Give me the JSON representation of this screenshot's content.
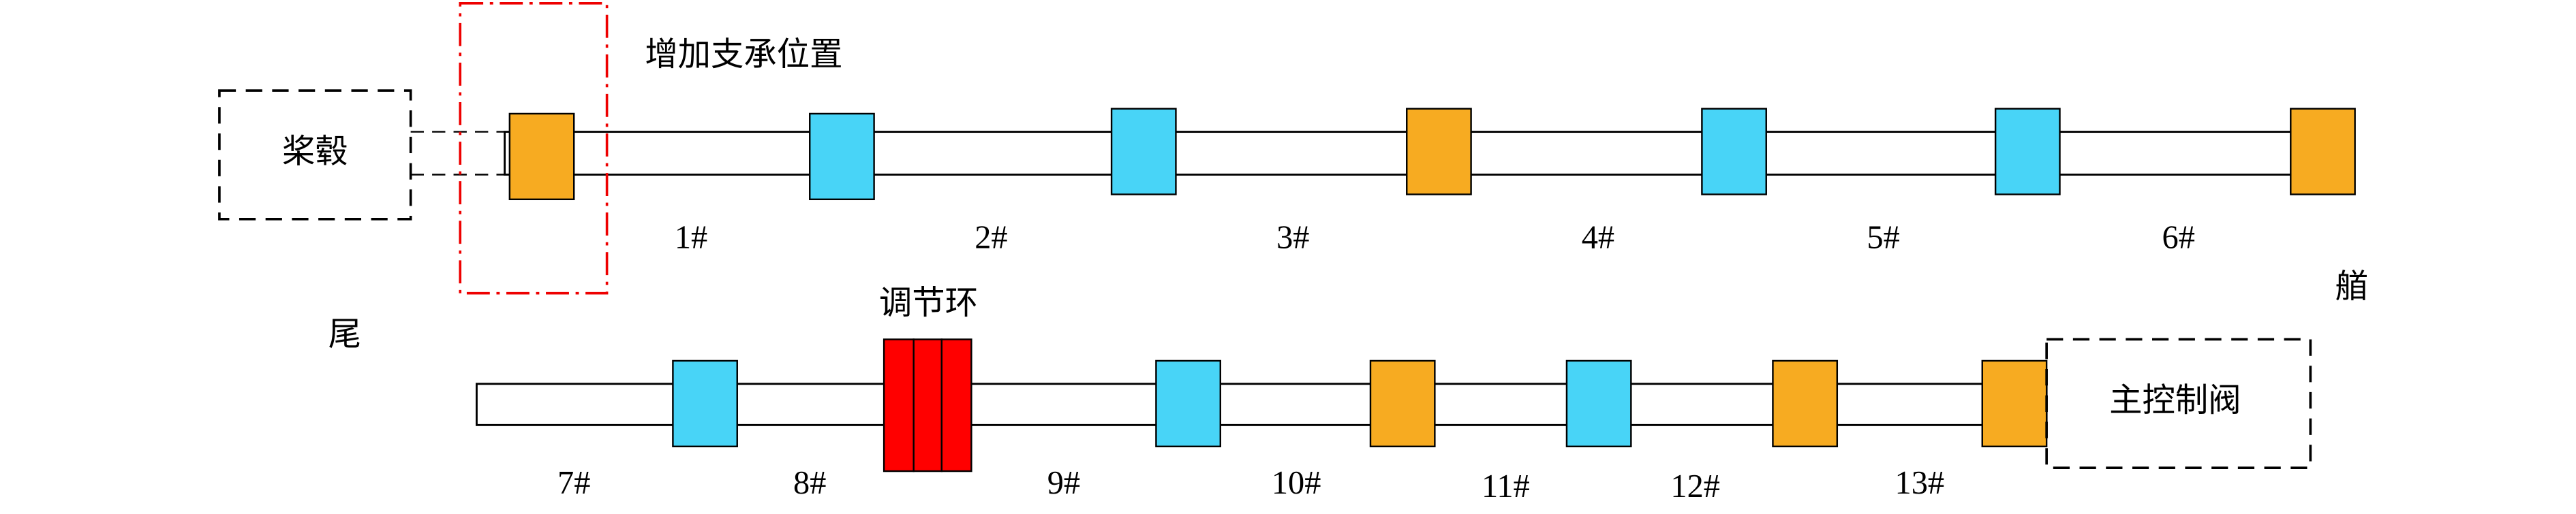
{
  "labels": {
    "hub": "桨毂",
    "add_support": "增加支承位置",
    "stern": "尾",
    "bow": "艏",
    "adjust_ring": "调节环",
    "main_valve": "主控制阀"
  },
  "bearings": [
    "1#",
    "2#",
    "3#",
    "4#",
    "5#",
    "6#",
    "7#",
    "8#",
    "9#",
    "10#",
    "11#",
    "12#",
    "13#"
  ]
}
